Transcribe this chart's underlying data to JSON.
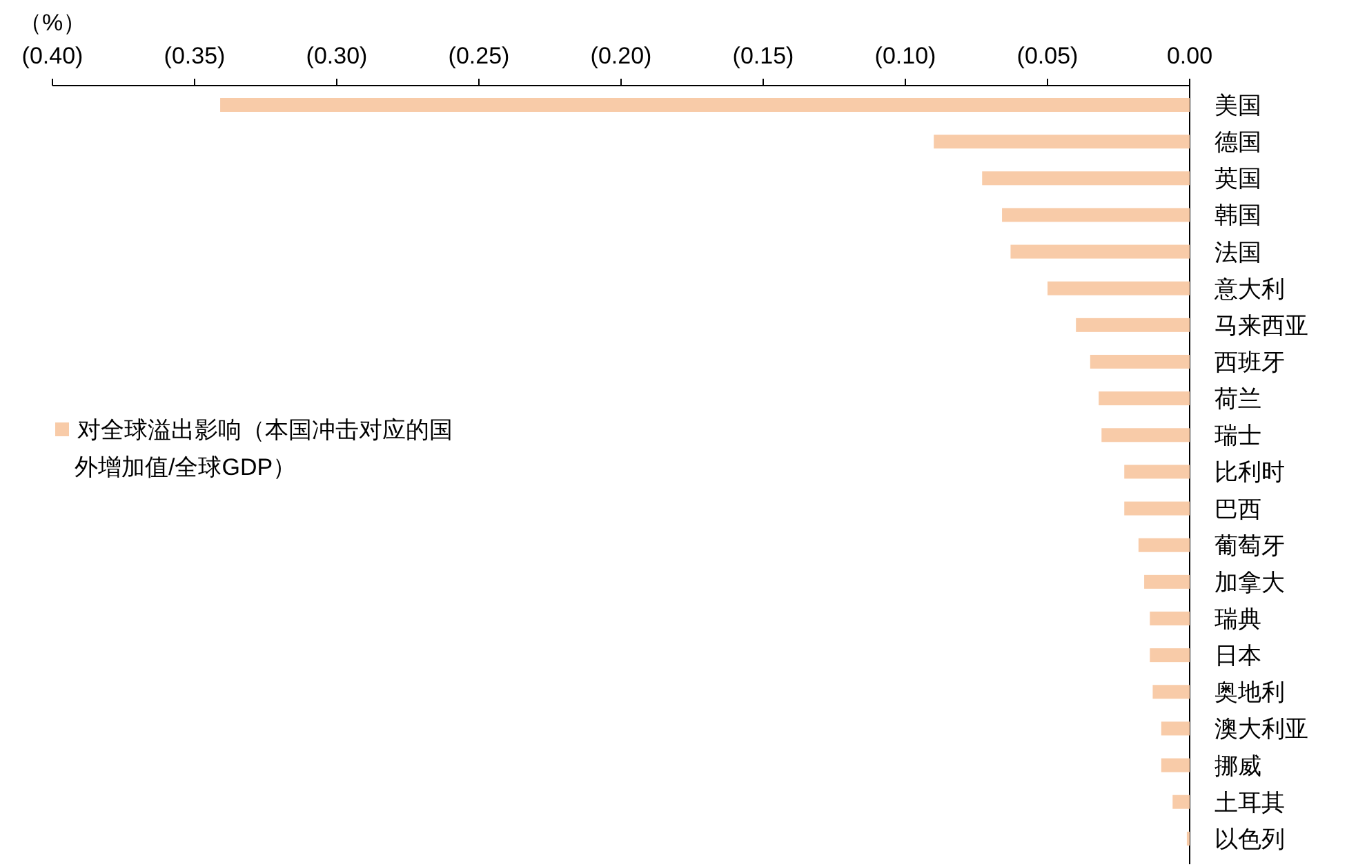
{
  "chart_data": {
    "type": "bar",
    "orientation": "horizontal",
    "xlabel": "（%）",
    "categories": [
      "美国",
      "德国",
      "英国",
      "韩国",
      "法国",
      "意大利",
      "马来西亚",
      "西班牙",
      "荷兰",
      "瑞士",
      "比利时",
      "巴西",
      "葡萄牙",
      "加拿大",
      "瑞典",
      "日本",
      "奥地利",
      "澳大利亚",
      "挪威",
      "土耳其",
      "以色列"
    ],
    "series": [
      {
        "name": "对全球溢出影响（本国冲击对应的国外增加值/全球GDP）",
        "color": "#f8cba8",
        "values": [
          -0.341,
          -0.09,
          -0.073,
          -0.066,
          -0.063,
          -0.05,
          -0.04,
          -0.035,
          -0.032,
          -0.031,
          -0.023,
          -0.023,
          -0.018,
          -0.016,
          -0.014,
          -0.014,
          -0.013,
          -0.01,
          -0.01,
          -0.006,
          -0.001
        ]
      }
    ],
    "xlim": [
      -0.4,
      0
    ],
    "xticks": [
      {
        "value": -0.4,
        "label": "(0.40)"
      },
      {
        "value": -0.35,
        "label": "(0.35)"
      },
      {
        "value": -0.3,
        "label": "(0.30)"
      },
      {
        "value": -0.25,
        "label": "(0.25)"
      },
      {
        "value": -0.2,
        "label": "(0.20)"
      },
      {
        "value": -0.15,
        "label": "(0.15)"
      },
      {
        "value": -0.1,
        "label": "(0.10)"
      },
      {
        "value": -0.05,
        "label": "(0.05)"
      },
      {
        "value": 0,
        "label": "0.00"
      }
    ],
    "legend": "left"
  }
}
